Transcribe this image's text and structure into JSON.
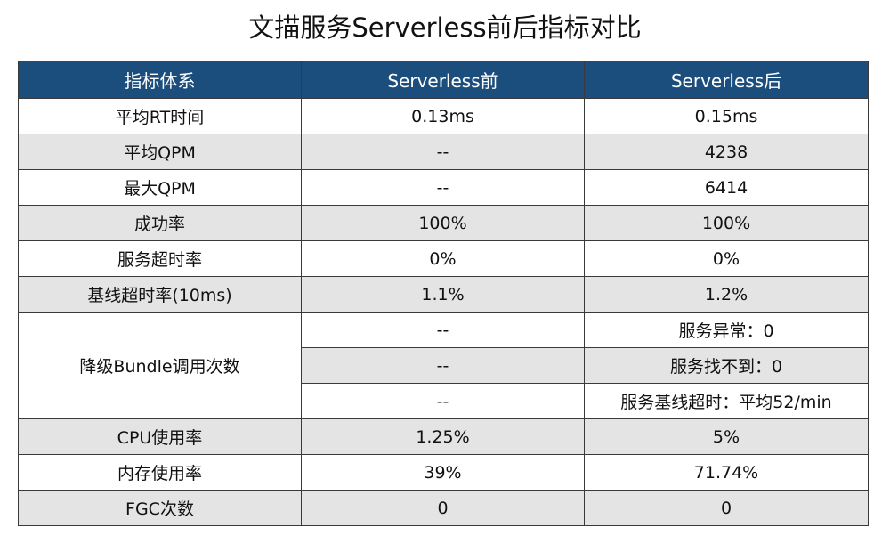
{
  "title": "文描服务Serverless前后指标对比",
  "table": {
    "header": [
      "指标体系",
      "Serverless前",
      "Serverless后"
    ],
    "rows": [
      {
        "label": "平均RT时间",
        "cells": [
          [
            "0.13ms",
            "0.15ms"
          ]
        ]
      },
      {
        "label": "平均QPM",
        "cells": [
          [
            "--",
            "4238"
          ]
        ]
      },
      {
        "label": "最大QPM",
        "cells": [
          [
            "--",
            "6414"
          ]
        ]
      },
      {
        "label": "成功率",
        "cells": [
          [
            "100%",
            "100%"
          ]
        ]
      },
      {
        "label": "服务超时率",
        "cells": [
          [
            "0%",
            "0%"
          ]
        ]
      },
      {
        "label": "基线超时率(10ms)",
        "cells": [
          [
            "1.1%",
            "1.2%"
          ]
        ]
      },
      {
        "label": "降级Bundle调用次数",
        "cells": [
          [
            "--",
            "服务异常：0"
          ],
          [
            "--",
            "服务找不到：0"
          ],
          [
            "--",
            "服务基线超时：平均52/min"
          ]
        ]
      },
      {
        "label": "CPU使用率",
        "cells": [
          [
            "1.25%",
            "5%"
          ]
        ]
      },
      {
        "label": "内存使用率",
        "cells": [
          [
            "39%",
            "71.74%"
          ]
        ]
      },
      {
        "label": "FGC次数",
        "cells": [
          [
            "0",
            "0"
          ]
        ]
      }
    ]
  }
}
